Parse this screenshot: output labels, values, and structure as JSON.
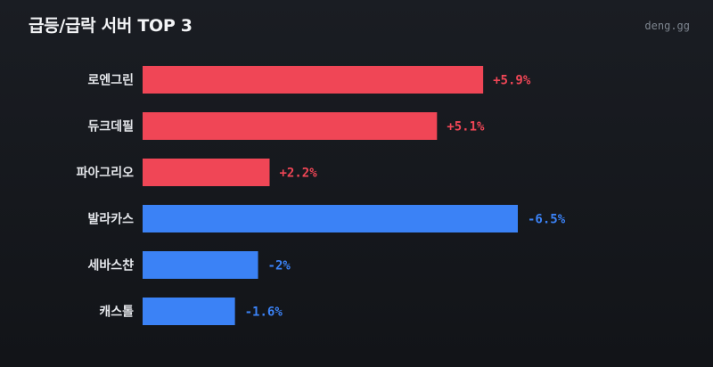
{
  "header": {
    "title": "급등/급락 서버 TOP 3",
    "brand": "deng.gg"
  },
  "colors": {
    "up": "#f04656",
    "down": "#3b82f6",
    "background": "#15181d"
  },
  "chart_data": {
    "type": "bar",
    "orientation": "horizontal",
    "title": "급등/급락 서버 TOP 3",
    "categories": [
      "로엔그린",
      "듀크데필",
      "파아그리오",
      "발라카스",
      "세바스챤",
      "캐스톨"
    ],
    "values": [
      5.9,
      5.1,
      2.2,
      -6.5,
      -2,
      -1.6
    ],
    "value_labels": [
      "+5.9%",
      "+5.1%",
      "+2.2%",
      "-6.5%",
      "-2%",
      "-1.6%"
    ],
    "unit": "%",
    "grid": false,
    "legend": "none"
  }
}
